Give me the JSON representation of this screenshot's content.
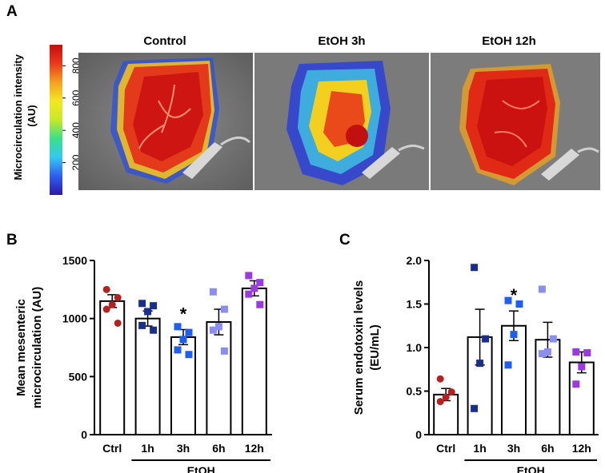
{
  "panels": {
    "a": "A",
    "b": "B",
    "c": "C"
  },
  "panel_a": {
    "colorbar": {
      "label_line1": "Microcirculation intensity",
      "label_line2": "(AU)",
      "ticks": [
        "800",
        "600",
        "400",
        "200"
      ],
      "tick_values": [
        800,
        600,
        400,
        200
      ],
      "range": [
        0,
        930
      ],
      "colors": [
        "#2b1aa8",
        "#2f5ef0",
        "#35c8f0",
        "#39e08a",
        "#c8e828",
        "#f2e81e",
        "#f4a020",
        "#ea3a1a",
        "#c80d10"
      ]
    },
    "images": [
      {
        "title": "Control"
      },
      {
        "title": "EtOH 3h"
      },
      {
        "title": "EtOH 12h"
      }
    ]
  },
  "chart_data": [
    {
      "type": "bar",
      "panel": "B",
      "ylabel_line1": "Mean mesenteric",
      "ylabel_line2": "microcirculation (AU)",
      "ylim": [
        0,
        1500
      ],
      "yticks": [
        0,
        500,
        1000,
        1500
      ],
      "categories": [
        "Ctrl",
        "1h",
        "3h",
        "6h",
        "12h"
      ],
      "group_label": "EtOH",
      "values": [
        1150,
        1000,
        840,
        970,
        1260
      ],
      "sem": [
        55,
        65,
        65,
        110,
        65
      ],
      "points": [
        [
          1250,
          1180,
          1120,
          1080,
          960
        ],
        [
          1130,
          1110,
          1060,
          940,
          900
        ],
        [
          930,
          880,
          820,
          730,
          690
        ],
        [
          1230,
          1080,
          930,
          900,
          720
        ],
        [
          1370,
          1310,
          1260,
          1210,
          1120
        ]
      ],
      "colors": [
        "#b22222",
        "#1a2f8c",
        "#1f5ff0",
        "#8a8ef0",
        "#9b3ae0"
      ],
      "significance": [
        "",
        "",
        "*",
        "",
        ""
      ]
    },
    {
      "type": "bar",
      "panel": "C",
      "ylabel_line1": "Serum endotoxin levels",
      "ylabel_line2": "(EU/mL)",
      "ylim": [
        0,
        2.0
      ],
      "yticks": [
        "0",
        "0.5",
        "1.0",
        "1.5",
        "2.0"
      ],
      "ytick_values": [
        0,
        0.5,
        1.0,
        1.5,
        2.0
      ],
      "categories": [
        "Ctrl",
        "1h",
        "3h",
        "6h",
        "12h"
      ],
      "group_label": "EtOH",
      "values": [
        0.46,
        1.12,
        1.25,
        1.09,
        0.83
      ],
      "sem": [
        0.07,
        0.32,
        0.17,
        0.2,
        0.12
      ],
      "points": [
        [
          0.64,
          0.49,
          0.43,
          0.38
        ],
        [
          1.92,
          1.1,
          0.82,
          0.3
        ],
        [
          1.54,
          1.5,
          1.15,
          0.8
        ],
        [
          1.67,
          1.1,
          0.95,
          0.93
        ],
        [
          0.95,
          0.94,
          0.78,
          0.58
        ]
      ],
      "colors": [
        "#b22222",
        "#1a2f8c",
        "#1f5ff0",
        "#8a8ef0",
        "#9b3ae0"
      ],
      "significance": [
        "",
        "",
        "*",
        "",
        ""
      ]
    }
  ]
}
